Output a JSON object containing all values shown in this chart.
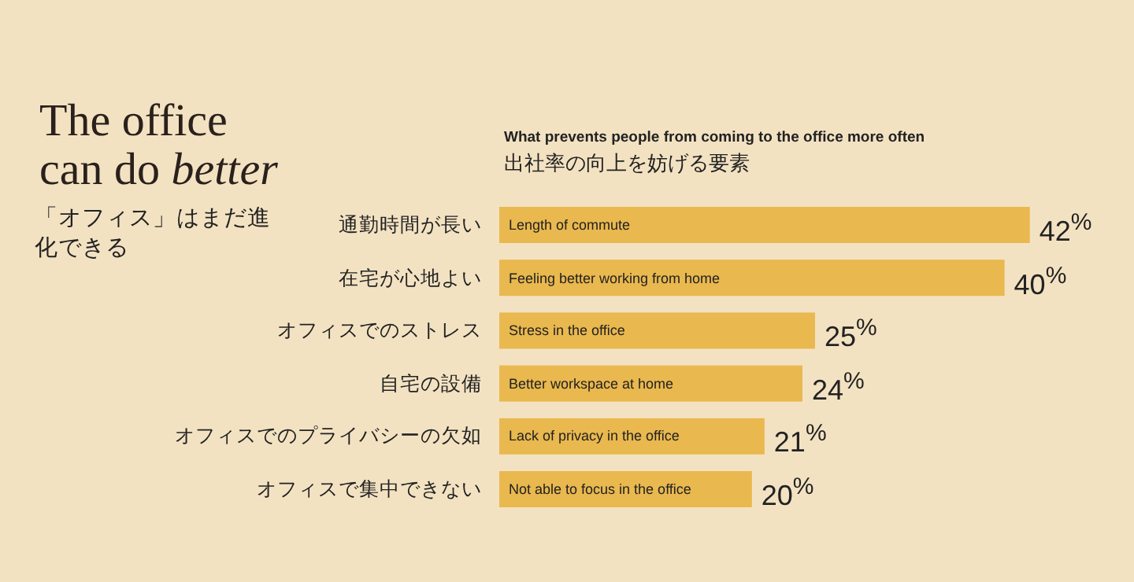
{
  "chart_data": {
    "type": "bar",
    "orientation": "horizontal",
    "title": "The office can do *better*",
    "subtitle": "「オフィス」はまだ進化できる",
    "categories": [
      "通勤時間が長い",
      "在宅が心地よい",
      "オフィスでのストレス",
      "自宅の設備",
      "オフィスでのプライバシーの欠如",
      "オフィスで集中できない"
    ],
    "values": [
      42,
      40,
      25,
      24,
      21,
      20
    ],
    "color": "#e9b84e",
    "value_labels": [
      "42$^{%}$",
      "40$^{%}$",
      "25$^{%}$",
      "24$^{%}$",
      "21$^{%}$",
      "20$^{%}$"
    ],
    "annotations": [
      "What prevents people from coming to the office more often",
      "出社率の向上を妨げる要素",
      {
        "text": "Length of commute",
        "y": "通勤時間が長い"
      },
      {
        "text": "Feeling better working from home",
        "y": "在宅が心地よい"
      },
      {
        "text": "Stress in the office",
        "y": "オフィスでのストレス"
      },
      {
        "text": "Better workspace at home",
        "y": "自宅の設備"
      },
      {
        "text": "Lack of privacy in the office",
        "y": "オフィスでのプライバシーの欠如"
      },
      {
        "text": "Not able to focus in the office",
        "y": "オフィスで集中できない"
      }
    ]
  }
}
